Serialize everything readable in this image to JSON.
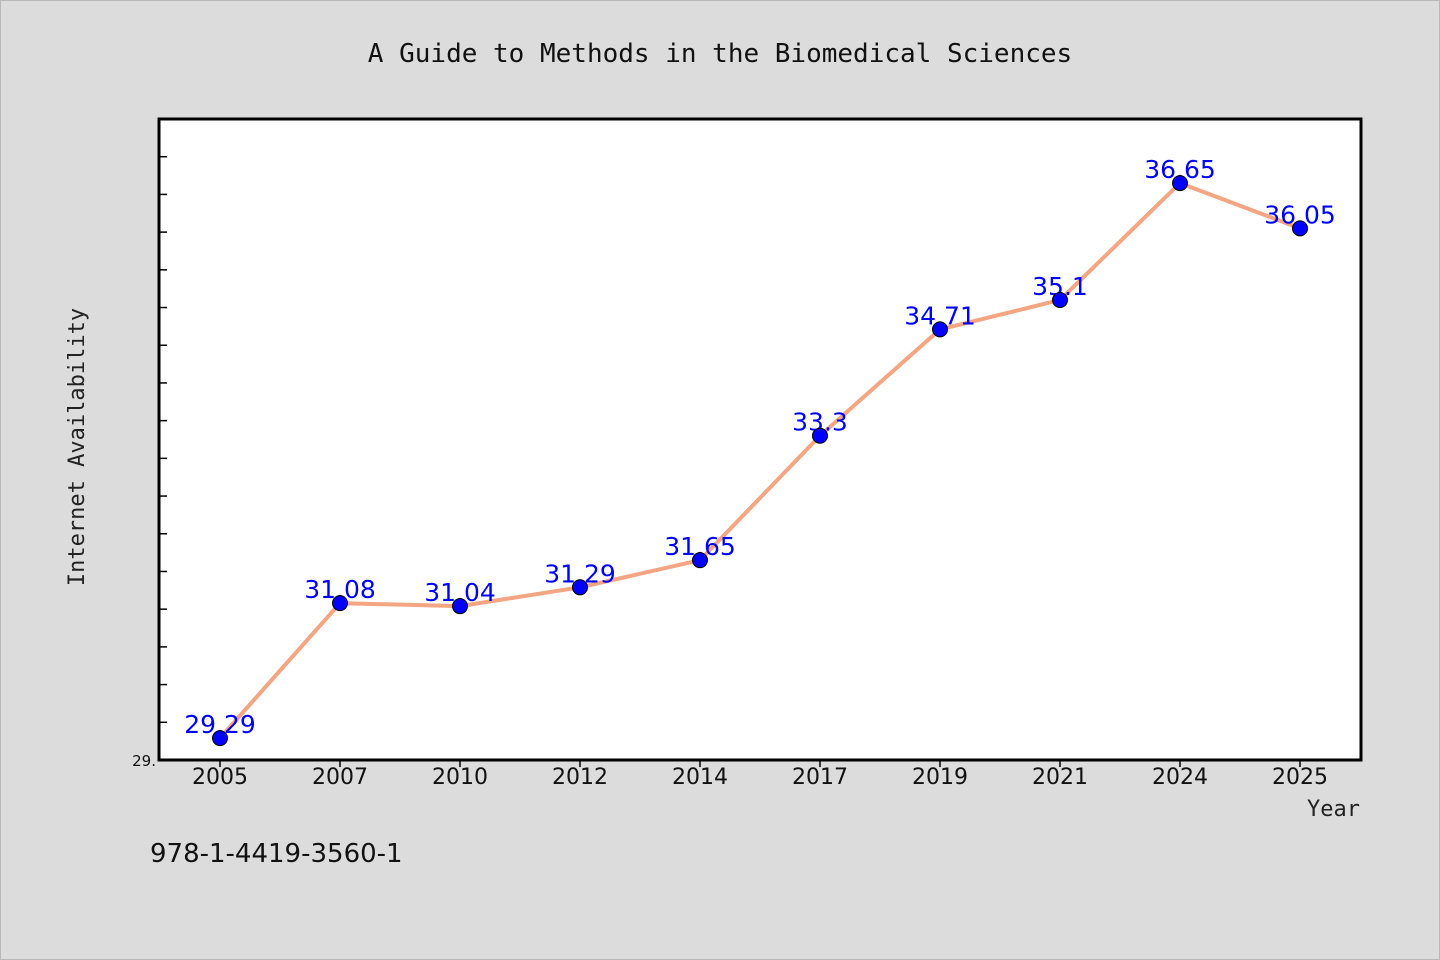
{
  "chart_data": {
    "type": "line",
    "title": "A Guide to Methods in the Biomedical Sciences",
    "xlabel": "Year",
    "ylabel": "Internet Availability",
    "categories": [
      "2005",
      "2007",
      "2010",
      "2012",
      "2014",
      "2017",
      "2019",
      "2021",
      "2024",
      "2025"
    ],
    "series": [
      {
        "values": [
          29.29,
          31.08,
          31.04,
          31.29,
          31.65,
          33.3,
          34.71,
          35.1,
          36.65,
          36.05
        ]
      }
    ],
    "data_labels": [
      "29.29",
      "31.08",
      "31.04",
      "31.29",
      "31.65",
      "33.3",
      "34.71",
      "35.1",
      "36.65",
      "36.05"
    ],
    "ylim": [
      29.0,
      37.5
    ],
    "y_tick_label": "29.",
    "grid": false,
    "legend": "none",
    "colors": {
      "line": "#f4a582",
      "marker": "#0000ff",
      "data_label": "#0000ff",
      "plot_background": "#ffffff",
      "page_background": "#dcdcdc"
    }
  },
  "footer": {
    "isbn": "978-1-4419-3560-1"
  }
}
